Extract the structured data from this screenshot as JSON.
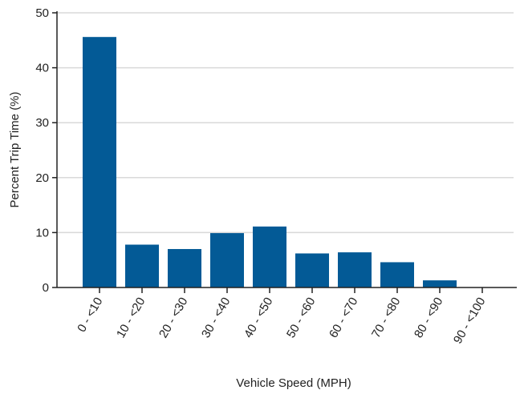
{
  "chart_data": {
    "type": "bar",
    "title": "",
    "xlabel": "Vehicle Speed (MPH)",
    "ylabel": "Percent Trip Time (%)",
    "categories": [
      "0 - <10",
      "10 - <20",
      "20 - <30",
      "30 - <40",
      "40 - <50",
      "50 - <60",
      "60 - <70",
      "70 - <80",
      "80 - <90",
      "90 - <100"
    ],
    "values": [
      45.6,
      7.8,
      7.0,
      9.9,
      11.1,
      6.2,
      6.4,
      4.6,
      1.3,
      0.0
    ],
    "ylim": [
      0,
      50
    ],
    "yticks": [
      0,
      10,
      20,
      30,
      40,
      50
    ],
    "grid": true,
    "legend": "none",
    "bar_color": "#035a96",
    "grid_color": "#d9d9d9",
    "axis_color": "#222222"
  }
}
